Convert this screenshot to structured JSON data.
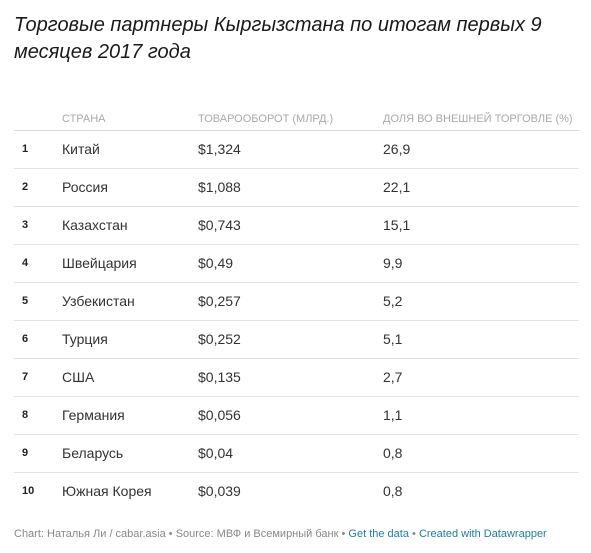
{
  "title": "Торговые партнеры Кыргызстана по итогам первых 9 месяцев 2017 года",
  "chart_data": {
    "type": "table",
    "columns": [
      "",
      "СТРАНА",
      "ТОВАРООБОРОТ (МЛРД.)",
      "ДОЛЯ ВО ВНЕШНЕЙ ТОРГОВЛЕ (%)"
    ],
    "rows": [
      {
        "rank": "1",
        "country": "Китай",
        "turnover": "$1,324",
        "share": "26,9"
      },
      {
        "rank": "2",
        "country": "Россия",
        "turnover": "$1,088",
        "share": "22,1"
      },
      {
        "rank": "3",
        "country": "Казахстан",
        "turnover": "$0,743",
        "share": "15,1"
      },
      {
        "rank": "4",
        "country": "Швейцария",
        "turnover": "$0,49",
        "share": "9,9"
      },
      {
        "rank": "5",
        "country": "Узбекистан",
        "turnover": "$0,257",
        "share": "5,2"
      },
      {
        "rank": "6",
        "country": "Турция",
        "turnover": "$0,252",
        "share": "5,1"
      },
      {
        "rank": "7",
        "country": "США",
        "turnover": "$0,135",
        "share": "2,7"
      },
      {
        "rank": "8",
        "country": "Германия",
        "turnover": "$0,056",
        "share": "1,1"
      },
      {
        "rank": "9",
        "country": "Беларусь",
        "turnover": "$0,04",
        "share": "0,8"
      },
      {
        "rank": "10",
        "country": "Южная Корея",
        "turnover": "$0,039",
        "share": "0,8"
      }
    ]
  },
  "footer": {
    "credit": "Chart: Наталья Ли / cabar.asia",
    "source": "Source: МВФ и Всемирный банк",
    "get_data": "Get the data",
    "created_with": "Created with Datawrapper",
    "separator": "•"
  },
  "colors": {
    "text": "#333333",
    "header_text": "#aaaaaa",
    "link": "#1d81a2",
    "divider": "#e3e3e3"
  }
}
